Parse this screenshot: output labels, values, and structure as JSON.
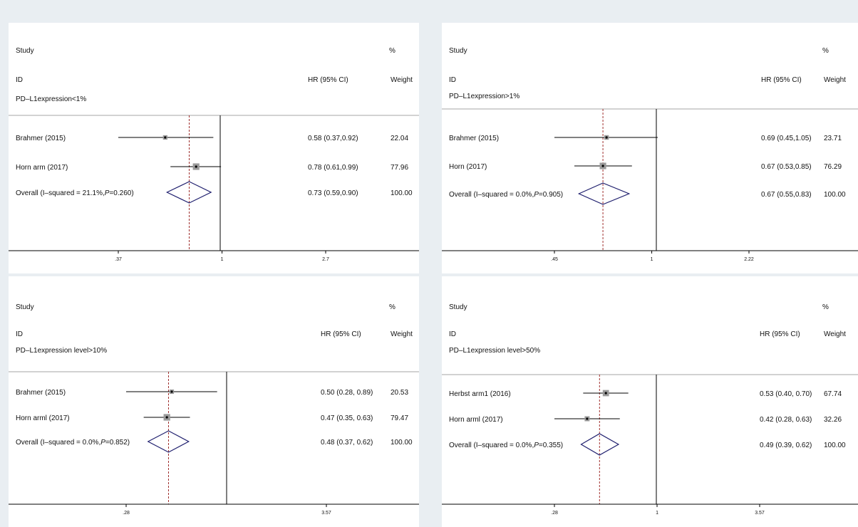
{
  "colors": {
    "background": "#e9eef2",
    "panel": "#ffffff",
    "ci_line": "#000000",
    "box_fill": "#9a9a9a",
    "diamond": "#1f1f6e",
    "overall_line": "#a0302e",
    "null_line": "#000000"
  },
  "chart_data": [
    {
      "type": "forest",
      "header": {
        "study_label": "Study",
        "id_label": "ID",
        "hr_label": "HR (95% CI)",
        "pct_label": "%",
        "weight_label": "Weight"
      },
      "subgroup": "PD–L1expression<1%",
      "x_scale": "log",
      "xlim": [
        0.37,
        2.7
      ],
      "ticks": [
        {
          "value": 0.37,
          "label": ".37"
        },
        {
          "value": 1,
          "label": "1"
        },
        {
          "value": 2.7,
          "label": "2.7"
        }
      ],
      "studies": [
        {
          "name": "Brahmer (2015)",
          "hr": 0.58,
          "lo": 0.37,
          "hi": 0.92,
          "ci_text": "0.58 (0.37,0.92)",
          "weight": "22.04",
          "weight_value": 22.04
        },
        {
          "name": "Horn arm (2017)",
          "hr": 0.78,
          "lo": 0.61,
          "hi": 0.99,
          "ci_text": "0.78 (0.61,0.99)",
          "weight": "77.96",
          "weight_value": 77.96
        }
      ],
      "overall": {
        "label_prefix": "Overall (I–squared = 21.1%,",
        "p_italic": "P",
        "label_suffix": "=0.260)",
        "hr": 0.73,
        "lo": 0.59,
        "hi": 0.9,
        "ci_text": "0.73 (0.59,0.90)",
        "weight": "100.00"
      }
    },
    {
      "type": "forest",
      "header": {
        "study_label": "Study",
        "id_label": "ID",
        "hr_label": "HR (95% CI)",
        "pct_label": "%",
        "weight_label": "Weight"
      },
      "subgroup": "PD–L1expression>1%",
      "x_scale": "log",
      "xlim": [
        0.45,
        2.22
      ],
      "ticks": [
        {
          "value": 0.45,
          "label": ".45"
        },
        {
          "value": 1,
          "label": "1"
        },
        {
          "value": 2.22,
          "label": "2.22"
        }
      ],
      "studies": [
        {
          "name": "Brahmer (2015)",
          "hr": 0.69,
          "lo": 0.45,
          "hi": 1.05,
          "ci_text": "0.69 (0.45,1.05)",
          "weight": "23.71",
          "weight_value": 23.71
        },
        {
          "name": "Horn (2017)",
          "hr": 0.67,
          "lo": 0.53,
          "hi": 0.85,
          "ci_text": "0.67 (0.53,0.85)",
          "weight": "76.29",
          "weight_value": 76.29
        }
      ],
      "overall": {
        "label_prefix": "Overall (I–squared = 0.0%,",
        "p_italic": "P",
        "label_suffix": "=0.905)",
        "hr": 0.67,
        "lo": 0.55,
        "hi": 0.83,
        "ci_text": "0.67 (0.55,0.83)",
        "weight": "100.00"
      }
    },
    {
      "type": "forest",
      "header": {
        "study_label": "Study",
        "id_label": "ID",
        "hr_label": "HR (95% CI)",
        "pct_label": "%",
        "weight_label": "Weight"
      },
      "subgroup": "PD–L1expression level>10%",
      "x_scale": "log",
      "xlim": [
        0.28,
        3.57
      ],
      "ticks": [
        {
          "value": 0.28,
          "label": ".28"
        },
        {
          "value": 3.57,
          "label": "3.57"
        }
      ],
      "studies": [
        {
          "name": "Brahmer (2015)",
          "hr": 0.5,
          "lo": 0.28,
          "hi": 0.89,
          "ci_text": "0.50 (0.28, 0.89)",
          "weight": "20.53",
          "weight_value": 20.53
        },
        {
          "name": "Horn arml (2017)",
          "hr": 0.47,
          "lo": 0.35,
          "hi": 0.63,
          "ci_text": "0.47 (0.35, 0.63)",
          "weight": "79.47",
          "weight_value": 79.47
        }
      ],
      "overall": {
        "label_prefix": "Overall (I–squared = 0.0%,",
        "p_italic": "P",
        "label_suffix": "=0.852)",
        "hr": 0.48,
        "lo": 0.37,
        "hi": 0.62,
        "ci_text": "0.48 (0.37, 0.62)",
        "weight": "100.00"
      }
    },
    {
      "type": "forest",
      "header": {
        "study_label": "Study",
        "id_label": "ID",
        "hr_label": "HR (95% CI)",
        "pct_label": "%",
        "weight_label": "Weight"
      },
      "subgroup": "PD–L1expression level>50%",
      "x_scale": "log",
      "xlim": [
        0.28,
        3.57
      ],
      "ticks": [
        {
          "value": 0.28,
          "label": ".28"
        },
        {
          "value": 1,
          "label": "1"
        },
        {
          "value": 3.57,
          "label": "3.57"
        }
      ],
      "studies": [
        {
          "name": "Herbst arm1 (2016)",
          "hr": 0.53,
          "lo": 0.4,
          "hi": 0.7,
          "ci_text": "0.53 (0.40, 0.70)",
          "weight": "67.74",
          "weight_value": 67.74
        },
        {
          "name": "Horn arml (2017)",
          "hr": 0.42,
          "lo": 0.28,
          "hi": 0.63,
          "ci_text": "0.42 (0.28, 0.63)",
          "weight": "32.26",
          "weight_value": 32.26
        }
      ],
      "overall": {
        "label_prefix": "Overall (I–squared = 0.0%,",
        "p_italic": "P",
        "label_suffix": "=0.355)",
        "hr": 0.49,
        "lo": 0.39,
        "hi": 0.62,
        "ci_text": "0.49 (0.39, 0.62)",
        "weight": "100.00"
      }
    }
  ]
}
